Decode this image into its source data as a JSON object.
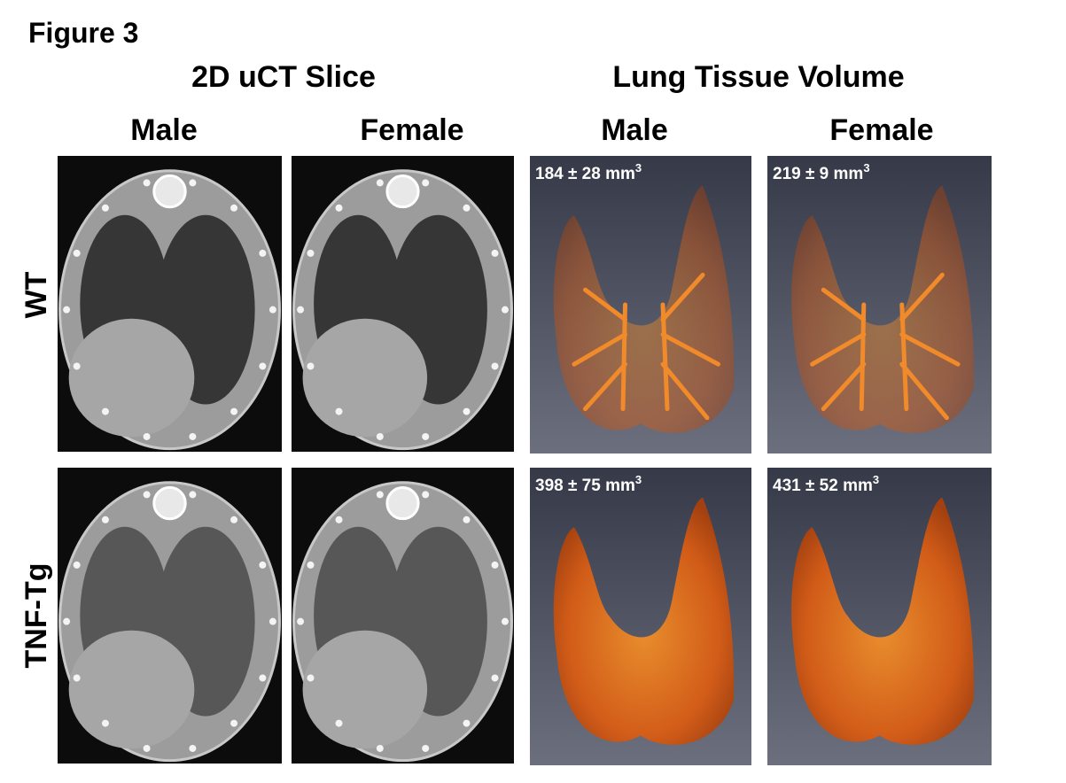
{
  "figure_label": "Figure 3",
  "sections": [
    "2D uCT Slice",
    "Lung Tissue Volume"
  ],
  "columns": [
    "Male",
    "Female",
    "Male",
    "Female"
  ],
  "rows": [
    "WT",
    "TNF-Tg"
  ],
  "volumes": [
    [
      {
        "text": "184 ± 28 mm",
        "sup": "3"
      },
      {
        "text": "219 ± 9 mm",
        "sup": "3"
      }
    ],
    [
      {
        "text": "398 ± 75 mm",
        "sup": "3"
      },
      {
        "text": "431 ± 52 mm",
        "sup": "3"
      }
    ]
  ]
}
